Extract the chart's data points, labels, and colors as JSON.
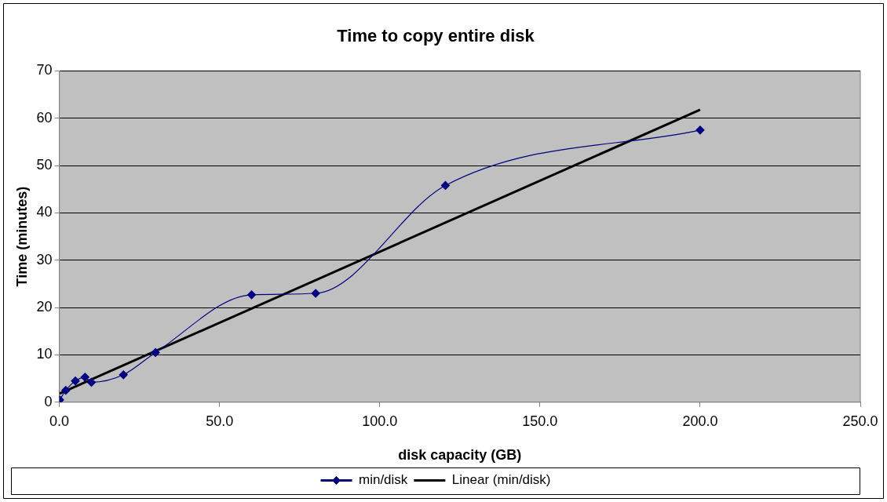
{
  "chart_data": {
    "type": "line",
    "title": "Time to copy entire disk",
    "xlabel": "disk capacity (GB)",
    "ylabel": "Time (minutes)",
    "xlim": [
      0,
      250
    ],
    "xticks": [
      {
        "value": 0,
        "label": "0.0"
      },
      {
        "value": 50,
        "label": "50.0"
      },
      {
        "value": 100,
        "label": "100.0"
      },
      {
        "value": 150,
        "label": "150.0"
      },
      {
        "value": 200,
        "label": "200.0"
      },
      {
        "value": 250,
        "label": "250.0"
      }
    ],
    "ylim": [
      0,
      70
    ],
    "yticks": [
      0,
      10,
      20,
      30,
      40,
      50,
      60,
      70
    ],
    "grid": "y",
    "legend": "bottom",
    "series": [
      {
        "name": "min/disk",
        "color": "#000080",
        "marker": "diamond",
        "x": [
          0.1,
          2,
          5,
          8,
          10,
          20,
          30,
          60,
          80,
          120.5,
          200
        ],
        "values": [
          0.5,
          2.5,
          4.5,
          5.3,
          4.2,
          5.8,
          10.5,
          22.7,
          23,
          45.8,
          57.5
        ]
      },
      {
        "name": "Linear (min/disk)",
        "color": "#000000",
        "marker": "none",
        "x": [
          0,
          200
        ],
        "values": [
          1.8,
          61.8
        ]
      }
    ]
  }
}
